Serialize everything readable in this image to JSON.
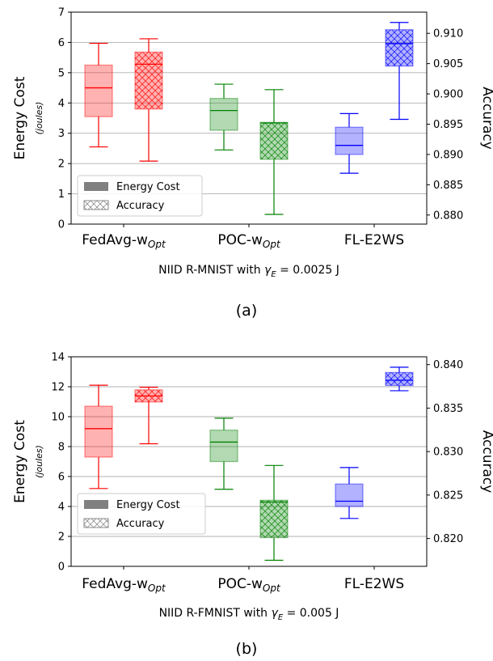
{
  "chart_data": [
    {
      "type": "box",
      "panel_label": "(a)",
      "xlabel": "NIID R-MNIST with γE = 0.0025 J",
      "ylabel": "Energy Cost",
      "ylabel_unit": "(joules)",
      "ylabel_right": "Accuracy",
      "ylim": [
        0,
        7
      ],
      "yticks": [
        0,
        1,
        2,
        3,
        4,
        5,
        6,
        7
      ],
      "ylim_right": [
        0.8785,
        0.9135
      ],
      "yticks_right": [
        "0.880",
        "0.885",
        "0.890",
        "0.895",
        "0.900",
        "0.905",
        "0.910"
      ],
      "grid": "horizontal",
      "legend": {
        "placement": "lower-left",
        "entries": [
          "Energy Cost",
          "Accuracy"
        ]
      },
      "categories": [
        {
          "main": "FedAvg-w",
          "sub": "Opt"
        },
        {
          "main": "POC-w",
          "sub": "Opt"
        },
        {
          "main": "FL-E2WS",
          "sub": ""
        }
      ],
      "series": [
        {
          "name": "Energy Cost",
          "axis": "left",
          "boxes": [
            {
              "category": 0,
              "min": 2.55,
              "q1": 3.55,
              "median": 4.5,
              "q3": 5.25,
              "max": 5.97,
              "color": "#ff0000"
            },
            {
              "category": 1,
              "min": 2.45,
              "q1": 3.1,
              "median": 3.75,
              "q3": 4.15,
              "max": 4.62,
              "color": "#008000"
            },
            {
              "category": 2,
              "min": 1.68,
              "q1": 2.3,
              "median": 2.6,
              "q3": 3.2,
              "max": 3.65,
              "color": "#0000ff"
            }
          ]
        },
        {
          "name": "Accuracy",
          "axis": "right",
          "boxes": [
            {
              "category": 0,
              "min": 0.8889,
              "q1": 0.8975,
              "median": 0.9049,
              "q3": 0.9069,
              "max": 0.9091,
              "color": "#ff0000"
            },
            {
              "category": 1,
              "min": 0.8801,
              "q1": 0.8892,
              "median": 0.8952,
              "q3": 0.8953,
              "max": 0.9007,
              "color": "#008000"
            },
            {
              "category": 2,
              "min": 0.8958,
              "q1": 0.9046,
              "median": 0.9083,
              "q3": 0.9106,
              "max": 0.9118,
              "color": "#0000ff"
            }
          ]
        }
      ]
    },
    {
      "type": "box",
      "panel_label": "(b)",
      "xlabel": "NIID R-FMNIST with γE = 0.005 J",
      "ylabel": "Energy Cost",
      "ylabel_unit": "(joules)",
      "ylabel_right": "Accuracy",
      "ylim": [
        0,
        14
      ],
      "yticks": [
        0,
        2,
        4,
        6,
        8,
        10,
        12,
        14
      ],
      "ylim_right": [
        0.8168,
        0.8409
      ],
      "yticks_right": [
        "0.820",
        "0.825",
        "0.830",
        "0.835",
        "0.840"
      ],
      "grid": "horizontal",
      "legend": {
        "placement": "lower-left",
        "entries": [
          "Energy Cost",
          "Accuracy"
        ]
      },
      "categories": [
        {
          "main": "FedAvg-w",
          "sub": "Opt"
        },
        {
          "main": "POC-w",
          "sub": "Opt"
        },
        {
          "main": "FL-E2WS",
          "sub": ""
        }
      ],
      "series": [
        {
          "name": "Energy Cost",
          "axis": "left",
          "boxes": [
            {
              "category": 0,
              "min": 5.2,
              "q1": 7.3,
              "median": 9.2,
              "q3": 10.7,
              "max": 12.1,
              "color": "#ff0000"
            },
            {
              "category": 1,
              "min": 5.15,
              "q1": 7.0,
              "median": 8.3,
              "q3": 9.1,
              "max": 9.9,
              "color": "#008000"
            },
            {
              "category": 2,
              "min": 3.2,
              "q1": 4.0,
              "median": 4.35,
              "q3": 5.5,
              "max": 6.6,
              "color": "#0000ff"
            }
          ]
        },
        {
          "name": "Accuracy",
          "axis": "right",
          "boxes": [
            {
              "category": 0,
              "min": 0.8309,
              "q1": 0.8357,
              "median": 0.8364,
              "q3": 0.8371,
              "max": 0.8374,
              "color": "#ff0000"
            },
            {
              "category": 1,
              "min": 0.8175,
              "q1": 0.8201,
              "median": 0.8242,
              "q3": 0.8244,
              "max": 0.8284,
              "color": "#008000"
            },
            {
              "category": 2,
              "min": 0.837,
              "q1": 0.8376,
              "median": 0.8382,
              "q3": 0.8391,
              "max": 0.8397,
              "color": "#0000ff"
            }
          ]
        }
      ]
    }
  ]
}
